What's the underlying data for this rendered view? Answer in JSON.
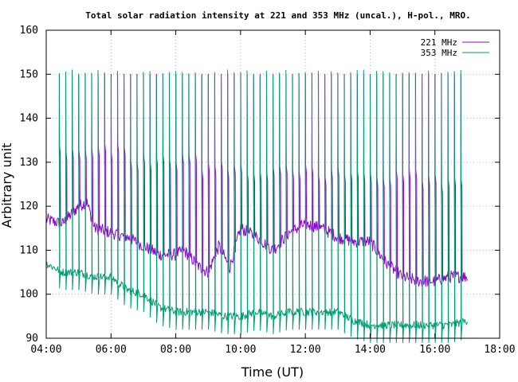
{
  "chart_data": {
    "type": "line",
    "title": "Total solar radiation intensity at 221 and 353 MHz (uncal.), H-pol., MRO.",
    "xlabel": "Time (UT)",
    "ylabel": "Arbitrary unit",
    "xlim_hours": [
      4,
      18
    ],
    "ylim": [
      90,
      160
    ],
    "x_ticks": [
      "04:00",
      "06:00",
      "08:00",
      "10:00",
      "12:00",
      "14:00",
      "16:00",
      "18:00"
    ],
    "y_ticks": [
      "90",
      "100",
      "110",
      "120",
      "130",
      "140",
      "150",
      "160"
    ],
    "grid": true,
    "legend_position": "top-right",
    "series": [
      {
        "name": "221 MHz",
        "color": "#9400d3",
        "x": [
          "04:00",
          "04:30",
          "05:00",
          "05:15",
          "05:30",
          "06:00",
          "06:30",
          "07:00",
          "07:30",
          "08:00",
          "08:15",
          "08:45",
          "09:00",
          "09:20",
          "09:40",
          "10:00",
          "10:30",
          "11:00",
          "11:30",
          "12:00",
          "12:30",
          "13:00",
          "13:30",
          "14:00",
          "14:30",
          "15:00",
          "15:30",
          "16:00",
          "16:30",
          "17:00"
        ],
        "values": [
          117,
          116,
          120,
          121,
          115,
          114,
          113,
          111,
          109,
          109,
          110,
          106,
          105,
          111,
          106,
          115,
          113,
          110,
          114,
          116,
          115,
          113,
          112,
          112,
          107,
          104,
          103,
          103,
          104,
          104
        ]
      },
      {
        "name": "353 MHz",
        "color": "#009e73",
        "x": [
          "04:00",
          "04:30",
          "05:00",
          "05:30",
          "06:00",
          "06:30",
          "07:00",
          "07:30",
          "08:00",
          "08:30",
          "09:00",
          "09:30",
          "10:00",
          "10:30",
          "11:00",
          "11:30",
          "12:00",
          "12:30",
          "13:00",
          "13:30",
          "14:00",
          "14:30",
          "15:00",
          "15:30",
          "16:00",
          "16:30",
          "17:00"
        ],
        "values": [
          107,
          105,
          105,
          104,
          104,
          101,
          100,
          97,
          96,
          96,
          96,
          95,
          95,
          96,
          95,
          96,
          96,
          96,
          96,
          94,
          93,
          93,
          93,
          93,
          93,
          93,
          94
        ]
      }
    ],
    "calibration_spikes": {
      "221 MHz": {
        "top": 150,
        "plateau": [
          133,
          131,
          129,
          128,
          127,
          126
        ]
      },
      "353 MHz": {
        "top": 151
      }
    }
  }
}
